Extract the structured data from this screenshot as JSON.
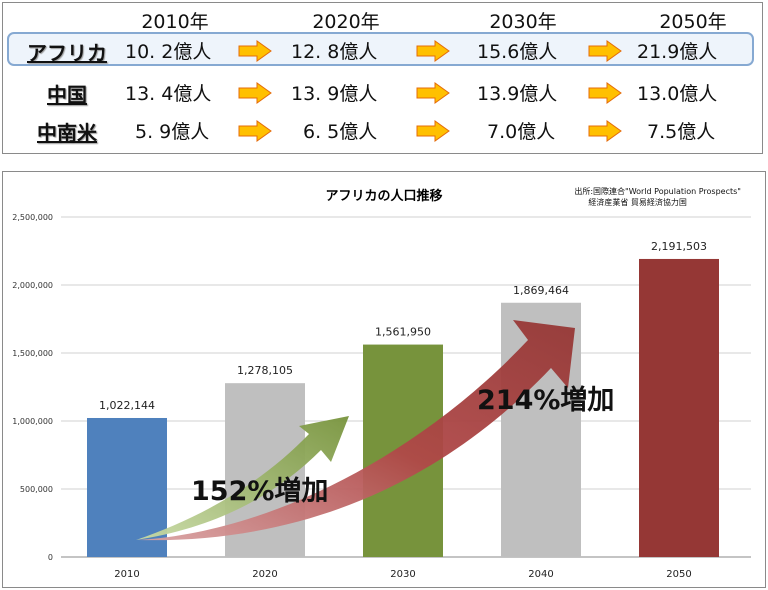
{
  "table": {
    "years": [
      "2010年",
      "2020年",
      "2030年",
      "2050年"
    ],
    "rows": [
      {
        "region": "アフリカ",
        "values": [
          "10. 2億人",
          "12. 8億人",
          "15.6億人",
          "21.9億人"
        ]
      },
      {
        "region": "中国",
        "values": [
          "13. 4億人",
          "13. 9億人",
          "13.9億人",
          "13.0億人"
        ]
      },
      {
        "region": "中南米",
        "values": [
          "5. 9億人",
          "6. 5億人",
          "7.0億人",
          "7.5億人"
        ]
      }
    ],
    "arrow_color": "#ffc000"
  },
  "source": {
    "line1": "出所:国際連合\"World Population Prospects\"",
    "line2": "経済産業省 貿易経済協力国"
  },
  "annotations": {
    "green_arrow_label": "152%増加",
    "red_arrow_label": "214%増加"
  },
  "chart_data": {
    "type": "bar",
    "title": "アフリカの人口推移",
    "categories": [
      "2010",
      "2020",
      "2030",
      "2040",
      "2050"
    ],
    "values": [
      1022144,
      1278105,
      1561950,
      1869464,
      2191503
    ],
    "value_labels": [
      "1,022,144",
      "1,278,105",
      "1,561,950",
      "1,869,464",
      "2,191,503"
    ],
    "colors": [
      "#4f81bd",
      "#bfbfbf",
      "#77933c",
      "#bfbfbf",
      "#953735"
    ],
    "ylim": [
      0,
      2500000
    ],
    "yticks": [
      0,
      500000,
      1000000,
      1500000,
      2000000,
      2500000
    ],
    "ytick_labels": [
      "0",
      "500,000",
      "1,000,000",
      "1,500,000",
      "2,000,000",
      "2,500,000"
    ],
    "grid": true,
    "xlabel": "",
    "ylabel": ""
  }
}
